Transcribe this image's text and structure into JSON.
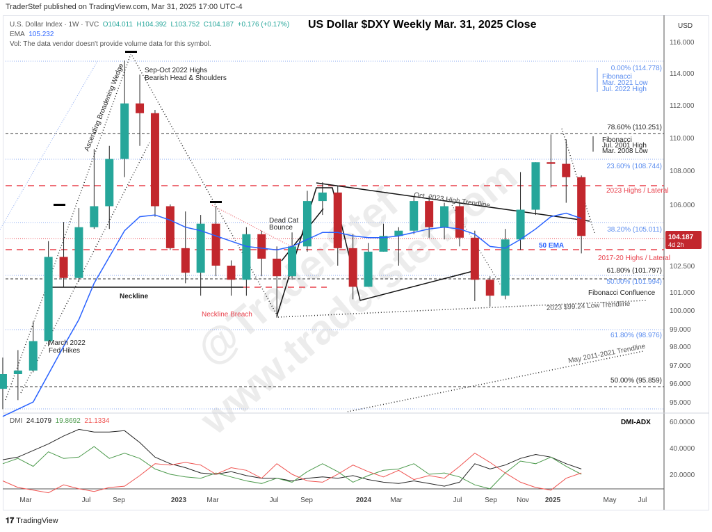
{
  "publisher_line": "TraderStef published on TradingView.com, Mar 31, 2025 17:00 UTC-4",
  "legend": {
    "symbol": "U.S. Dollar Index · 1W · TVC",
    "open": "O104.011",
    "high": "H104.392",
    "low": "L103.752",
    "close": "C104.187",
    "change": "+0.176 (+0.17%)",
    "ema_label": "EMA",
    "ema_value": "105.232",
    "vol_note": "Vol: The data vendor doesn't provide volume data for this symbol."
  },
  "title": "US Dollar $DXY Weekly Mar. 31, 2025 Close",
  "currency": "USD",
  "price_tag": {
    "price": "104.187",
    "countdown": "4d 2h"
  },
  "colors": {
    "up": "#26a69a",
    "down": "#c2272d",
    "ema": "#2962ff",
    "fib_blue": "#5b8def",
    "lateral_red": "#e8404b",
    "adx": "#222222",
    "plus_di": "#4c9a4c",
    "minus_di": "#ef5350"
  },
  "annotations": {
    "hs1": "Sep-Oct 2022 Highs",
    "hs2": "Bearish Head & Shoulders",
    "wedge": "Ascending Broadening Wedge",
    "neckline": "Neckline",
    "breach": "Neckline Breach",
    "dcb1": "Dead Cat",
    "dcb2": "Bounce",
    "fed1": "March 2022",
    "fed2": "Fed Hikes",
    "oct_trend": "Oct. 2023 High Trendline",
    "ema50": "50 EMA",
    "highs2023": "2023 Highs / Lateral",
    "highs1720": "2017-20 Highs / Lateral",
    "fib_conf": "Fibonacci Confluence",
    "low_trend": "2023 $99.24 Low Trendline",
    "may_trend": "May 2011-2021 Trendline",
    "fibA1": "Fibonacci",
    "fibA2": "Mar. 2021 Low",
    "fibA3": "Jul. 2022 High",
    "fibB1": "Fibonacci",
    "fibB2": "Jul. 2001 High",
    "fibB3": "Mar. 2008 Low",
    "f0": "0.00% (114.778)",
    "f786": "78.60% (110.251)",
    "f236": "23.60% (108.744)",
    "f382": "38.20% (105.011)",
    "f618a": "61.80% (101.797)",
    "f50a": "50.00% (101.994)",
    "f618b": "61.80% (98.976)",
    "f50b": "50.00% (95.859)"
  },
  "watermark": "@TraderStef www.traderstef.com",
  "dmi": {
    "label": "DMI",
    "adx": "24.1079",
    "plus": "19.8692",
    "minus": "21.1334",
    "title": "DMI-ADX"
  },
  "footer": "TradingView",
  "chart_data": [
    {
      "type": "candlestick",
      "interval_shown": "1W",
      "price_scale": "log",
      "ylim": [
        94.5,
        116.5
      ],
      "yticks": [
        116,
        114,
        112,
        110,
        108,
        106,
        102.5,
        101,
        100,
        99,
        98,
        97,
        96,
        95
      ],
      "ytick_labels": [
        "116.000",
        "114.000",
        "112.000",
        "110.000",
        "108.000",
        "106.000",
        "102.500",
        "101.000",
        "100.000",
        "99.000",
        "98.000",
        "97.000",
        "96.000",
        "95.000"
      ],
      "xtick_labels": [
        "Mar",
        "Jul",
        "Sep",
        "2023",
        "Mar",
        "Jul",
        "Sep",
        "2024",
        "Mar",
        "Jul",
        "Sep",
        "Nov",
        "2025",
        "May",
        "Jul"
      ],
      "periods": [
        "2022-01",
        "2022-02",
        "2022-03",
        "2022-04",
        "2022-05",
        "2022-06",
        "2022-07",
        "2022-08",
        "2022-09",
        "2022-10",
        "2022-11",
        "2022-12",
        "2023-01",
        "2023-02",
        "2023-03",
        "2023-04",
        "2023-05",
        "2023-06",
        "2023-07",
        "2023-08",
        "2023-09",
        "2023-10",
        "2023-11",
        "2023-12",
        "2024-01",
        "2024-02",
        "2024-03",
        "2024-04",
        "2024-05",
        "2024-06",
        "2024-07",
        "2024-08",
        "2024-09",
        "2024-10",
        "2024-11",
        "2024-12",
        "2025-01",
        "2025-02",
        "2025-03"
      ],
      "ohlc": [
        [
          95.7,
          97.4,
          94.6,
          96.5
        ],
        [
          96.5,
          97.8,
          95.1,
          96.7
        ],
        [
          96.7,
          99.4,
          96.6,
          98.3
        ],
        [
          98.3,
          103.9,
          98.0,
          103.0
        ],
        [
          103.0,
          105.0,
          101.3,
          101.8
        ],
        [
          101.8,
          105.8,
          101.6,
          104.7
        ],
        [
          104.7,
          109.3,
          104.6,
          105.9
        ],
        [
          105.9,
          109.5,
          104.6,
          108.7
        ],
        [
          108.7,
          114.8,
          107.6,
          112.1
        ],
        [
          112.1,
          113.9,
          109.5,
          111.5
        ],
        [
          111.5,
          111.7,
          105.3,
          105.9
        ],
        [
          105.9,
          106.0,
          103.4,
          103.5
        ],
        [
          103.5,
          105.6,
          101.5,
          102.1
        ],
        [
          102.1,
          105.4,
          100.8,
          104.9
        ],
        [
          104.9,
          105.9,
          101.9,
          102.5
        ],
        [
          102.5,
          102.8,
          100.8,
          101.7
        ],
        [
          101.7,
          104.7,
          100.8,
          104.3
        ],
        [
          104.3,
          104.5,
          101.9,
          102.9
        ],
        [
          102.9,
          103.6,
          99.6,
          101.9
        ],
        [
          101.9,
          104.4,
          101.7,
          103.6
        ],
        [
          103.6,
          106.8,
          103.3,
          106.2
        ],
        [
          106.2,
          107.3,
          105.4,
          106.7
        ],
        [
          106.7,
          107.1,
          102.5,
          103.5
        ],
        [
          103.5,
          104.3,
          100.6,
          101.3
        ],
        [
          101.3,
          103.8,
          101.3,
          103.3
        ],
        [
          103.3,
          104.9,
          103.3,
          104.2
        ],
        [
          104.2,
          104.7,
          102.5,
          104.5
        ],
        [
          104.5,
          106.5,
          104.3,
          106.2
        ],
        [
          106.2,
          106.5,
          104.1,
          104.7
        ],
        [
          104.7,
          106.1,
          104.0,
          105.9
        ],
        [
          105.9,
          106.1,
          103.6,
          104.1
        ],
        [
          104.1,
          104.5,
          100.5,
          101.7
        ],
        [
          101.7,
          101.9,
          100.2,
          100.8
        ],
        [
          100.8,
          104.6,
          100.6,
          104.0
        ],
        [
          104.0,
          107.9,
          103.4,
          105.7
        ],
        [
          105.7,
          108.5,
          105.4,
          108.5
        ],
        [
          108.5,
          110.2,
          107.0,
          108.4
        ],
        [
          108.4,
          109.9,
          106.1,
          107.6
        ],
        [
          107.6,
          107.7,
          103.2,
          104.2
        ]
      ],
      "ema50": [
        94.2,
        94.6,
        95.0,
        96.5,
        98.0,
        99.5,
        101.5,
        103.0,
        104.5,
        105.3,
        105.4,
        105.1,
        104.7,
        104.5,
        104.2,
        103.9,
        103.6,
        103.5,
        103.4,
        103.6,
        104.0,
        104.4,
        104.4,
        104.2,
        104.1,
        104.1,
        104.2,
        104.4,
        104.6,
        104.7,
        104.6,
        104.3,
        103.6,
        103.5,
        104.0,
        104.6,
        105.3,
        105.5,
        105.2
      ]
    },
    {
      "type": "line",
      "title": "DMI-ADX",
      "ylim": [
        0,
        65
      ],
      "yticks": [
        "60.0000",
        "40.0000",
        "20.0000"
      ],
      "series": [
        {
          "name": "ADX",
          "values": [
            31,
            33,
            38,
            43,
            49,
            54,
            52,
            52,
            53,
            44,
            33,
            28,
            25,
            21,
            20,
            22,
            19,
            17,
            17,
            15,
            17,
            18,
            17,
            19,
            16,
            14,
            13,
            15,
            13,
            11,
            14,
            28,
            24,
            27,
            32,
            35,
            33,
            28,
            24
          ]
        },
        {
          "name": "+DI",
          "values": [
            28,
            32,
            26,
            37,
            32,
            33,
            41,
            32,
            36,
            32,
            24,
            20,
            18,
            17,
            21,
            18,
            15,
            13,
            17,
            14,
            22,
            28,
            22,
            14,
            19,
            23,
            24,
            28,
            20,
            21,
            18,
            12,
            9,
            21,
            30,
            28,
            33,
            26,
            20
          ]
        },
        {
          "name": "-DI",
          "values": [
            15,
            10,
            8,
            6,
            12,
            9,
            7,
            10,
            11,
            19,
            28,
            27,
            29,
            27,
            20,
            25,
            23,
            17,
            28,
            20,
            15,
            14,
            20,
            27,
            22,
            18,
            23,
            16,
            19,
            17,
            26,
            36,
            29,
            21,
            14,
            10,
            8,
            17,
            21
          ]
        }
      ]
    }
  ]
}
